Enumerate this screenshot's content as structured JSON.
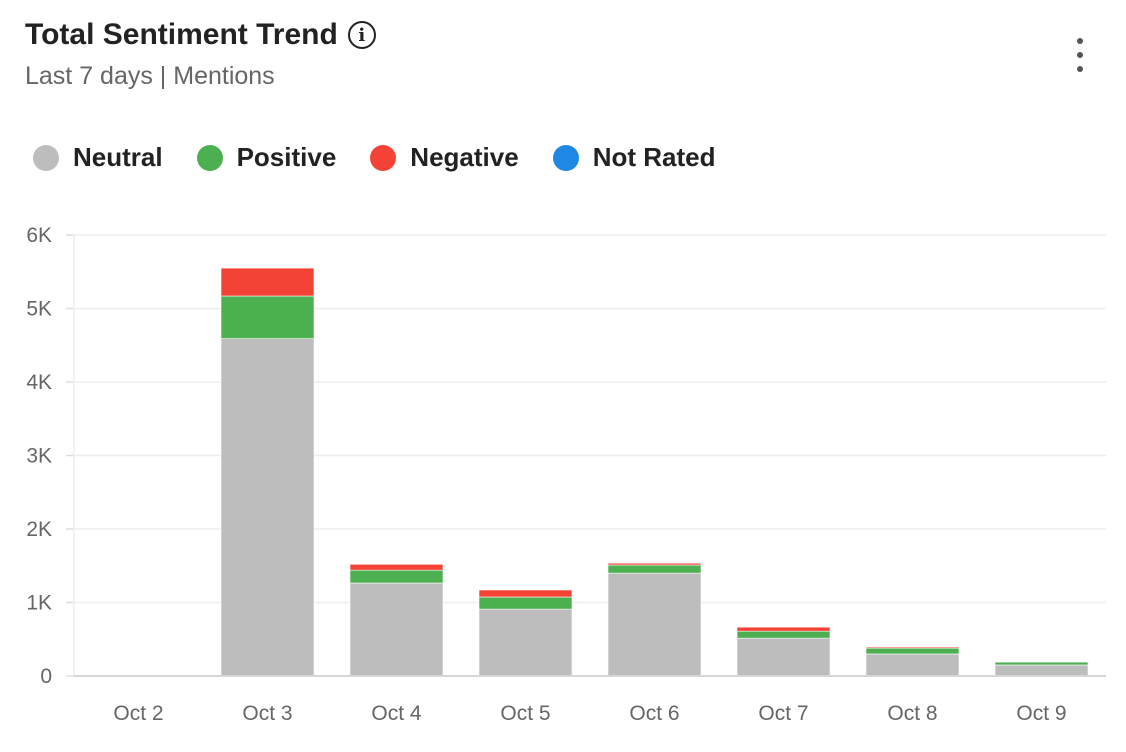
{
  "header": {
    "title": "Total Sentiment Trend",
    "info_icon": "info-icon",
    "subtitle": "Last 7 days | Mentions",
    "menu_icon": "kebab-menu-icon"
  },
  "chart_data": {
    "type": "bar",
    "stacked": true,
    "title": "Total Sentiment Trend",
    "categories": [
      "Oct 2",
      "Oct 3",
      "Oct 4",
      "Oct 5",
      "Oct 6",
      "Oct 7",
      "Oct 8",
      "Oct 9"
    ],
    "series": [
      {
        "name": "Neutral",
        "color": "#bdbdbd",
        "values": [
          0,
          4590,
          1265,
          910,
          1400,
          515,
          300,
          150
        ]
      },
      {
        "name": "Positive",
        "color": "#4caf50",
        "values": [
          0,
          580,
          175,
          165,
          110,
          95,
          80,
          40
        ]
      },
      {
        "name": "Negative",
        "color": "#f44336",
        "values": [
          0,
          380,
          80,
          95,
          25,
          55,
          15,
          5
        ]
      },
      {
        "name": "Not Rated",
        "color": "#1e88e5",
        "values": [
          0,
          0,
          0,
          0,
          0,
          0,
          0,
          0
        ]
      }
    ],
    "yticks": [
      "0",
      "1K",
      "2K",
      "3K",
      "4K",
      "5K",
      "6K"
    ],
    "ylim": [
      0,
      6000
    ],
    "grid": true,
    "legend": "top-left",
    "xlabel": "",
    "ylabel": ""
  }
}
